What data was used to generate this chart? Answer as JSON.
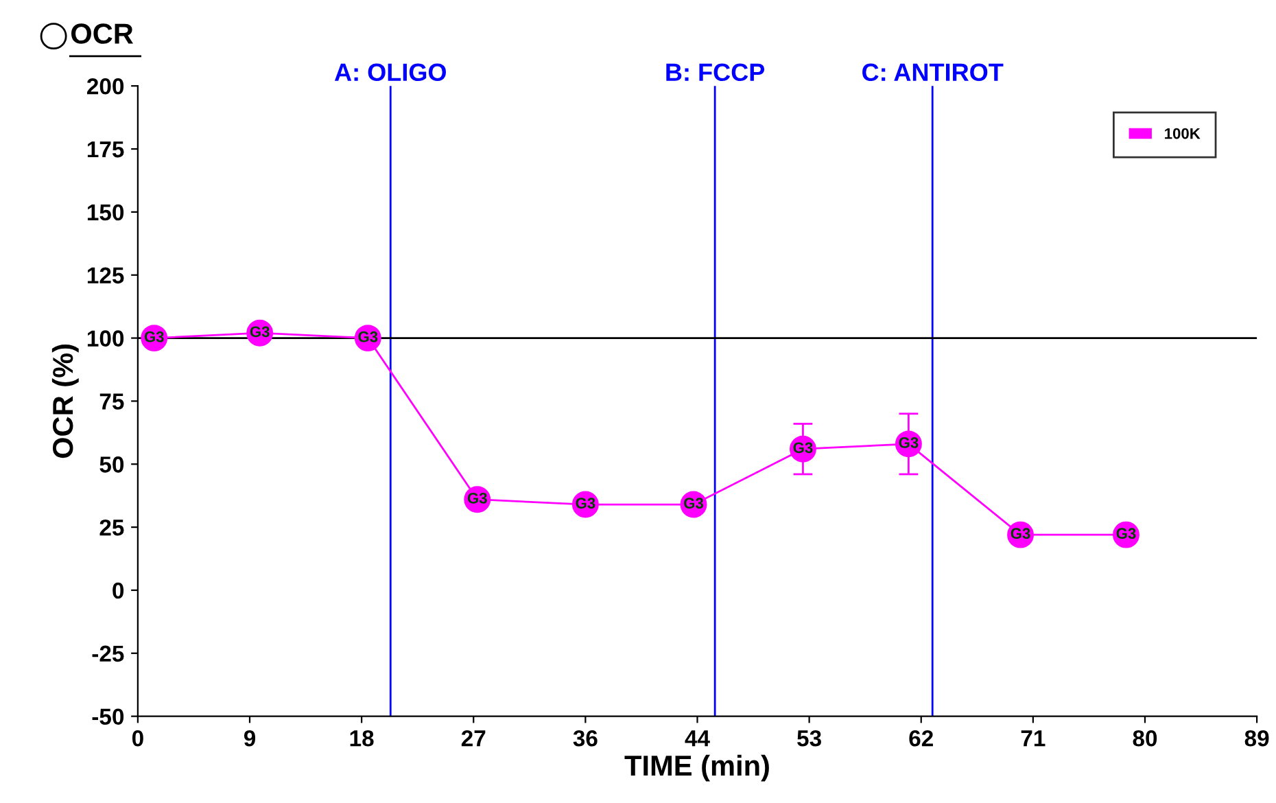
{
  "chart_data": {
    "type": "line",
    "title": "OCR",
    "xlabel": "TIME (min)",
    "ylabel": "OCR (%)",
    "x": [
      1.3,
      9.7,
      18.3,
      27.0,
      35.6,
      44.2,
      52.9,
      61.3,
      70.2,
      78.6
    ],
    "series": [
      {
        "name": "100K",
        "color": "#ff00ff",
        "values": [
          100,
          102,
          100,
          36,
          34,
          34,
          56,
          58,
          22,
          22
        ],
        "errors": [
          null,
          null,
          null,
          null,
          null,
          null,
          10,
          12,
          null,
          null
        ]
      }
    ],
    "annotations": [
      {
        "text": "G3",
        "x": 1.3,
        "y": 100
      },
      {
        "text": "G3",
        "x": 9.7,
        "y": 102
      },
      {
        "text": "G3",
        "x": 18.3,
        "y": 100
      },
      {
        "text": "G3",
        "x": 27.0,
        "y": 36
      },
      {
        "text": "G3",
        "x": 35.6,
        "y": 34
      },
      {
        "text": "G3",
        "x": 44.2,
        "y": 34
      },
      {
        "text": "G3",
        "x": 52.9,
        "y": 56
      },
      {
        "text": "G3",
        "x": 61.3,
        "y": 58
      },
      {
        "text": "G3",
        "x": 70.2,
        "y": 22
      },
      {
        "text": "G3",
        "x": 78.6,
        "y": 22
      }
    ],
    "ref_lines": [
      {
        "axis": "x",
        "value": 20.1,
        "label": "A: OLIGO",
        "color": "#0000ff"
      },
      {
        "axis": "x",
        "value": 45.9,
        "label": "B: FCCP",
        "color": "#0000ff"
      },
      {
        "axis": "x",
        "value": 63.2,
        "label": "C: ANTIROT",
        "color": "#0000ff"
      },
      {
        "axis": "y",
        "value": 100,
        "label": null,
        "color": "#000000"
      }
    ],
    "xlim": [
      0,
      89
    ],
    "ylim": [
      -50,
      200
    ],
    "xticks": [
      0,
      {
        "value": 8.9,
        "label": "9"
      },
      {
        "value": 17.8,
        "label": "18"
      },
      {
        "value": 26.7,
        "label": "27"
      },
      {
        "value": 35.6,
        "label": "36"
      },
      {
        "value": 44.5,
        "label": "44"
      },
      {
        "value": 53.4,
        "label": "53"
      },
      {
        "value": 62.3,
        "label": "62"
      },
      {
        "value": 71.2,
        "label": "71"
      },
      {
        "value": 80.1,
        "label": "80"
      },
      89
    ],
    "yticks": [
      -50,
      -25,
      0,
      25,
      50,
      75,
      100,
      125,
      150,
      175,
      200
    ],
    "grid": false,
    "legend": "top right",
    "marker": "circle",
    "line_style": "solid"
  }
}
